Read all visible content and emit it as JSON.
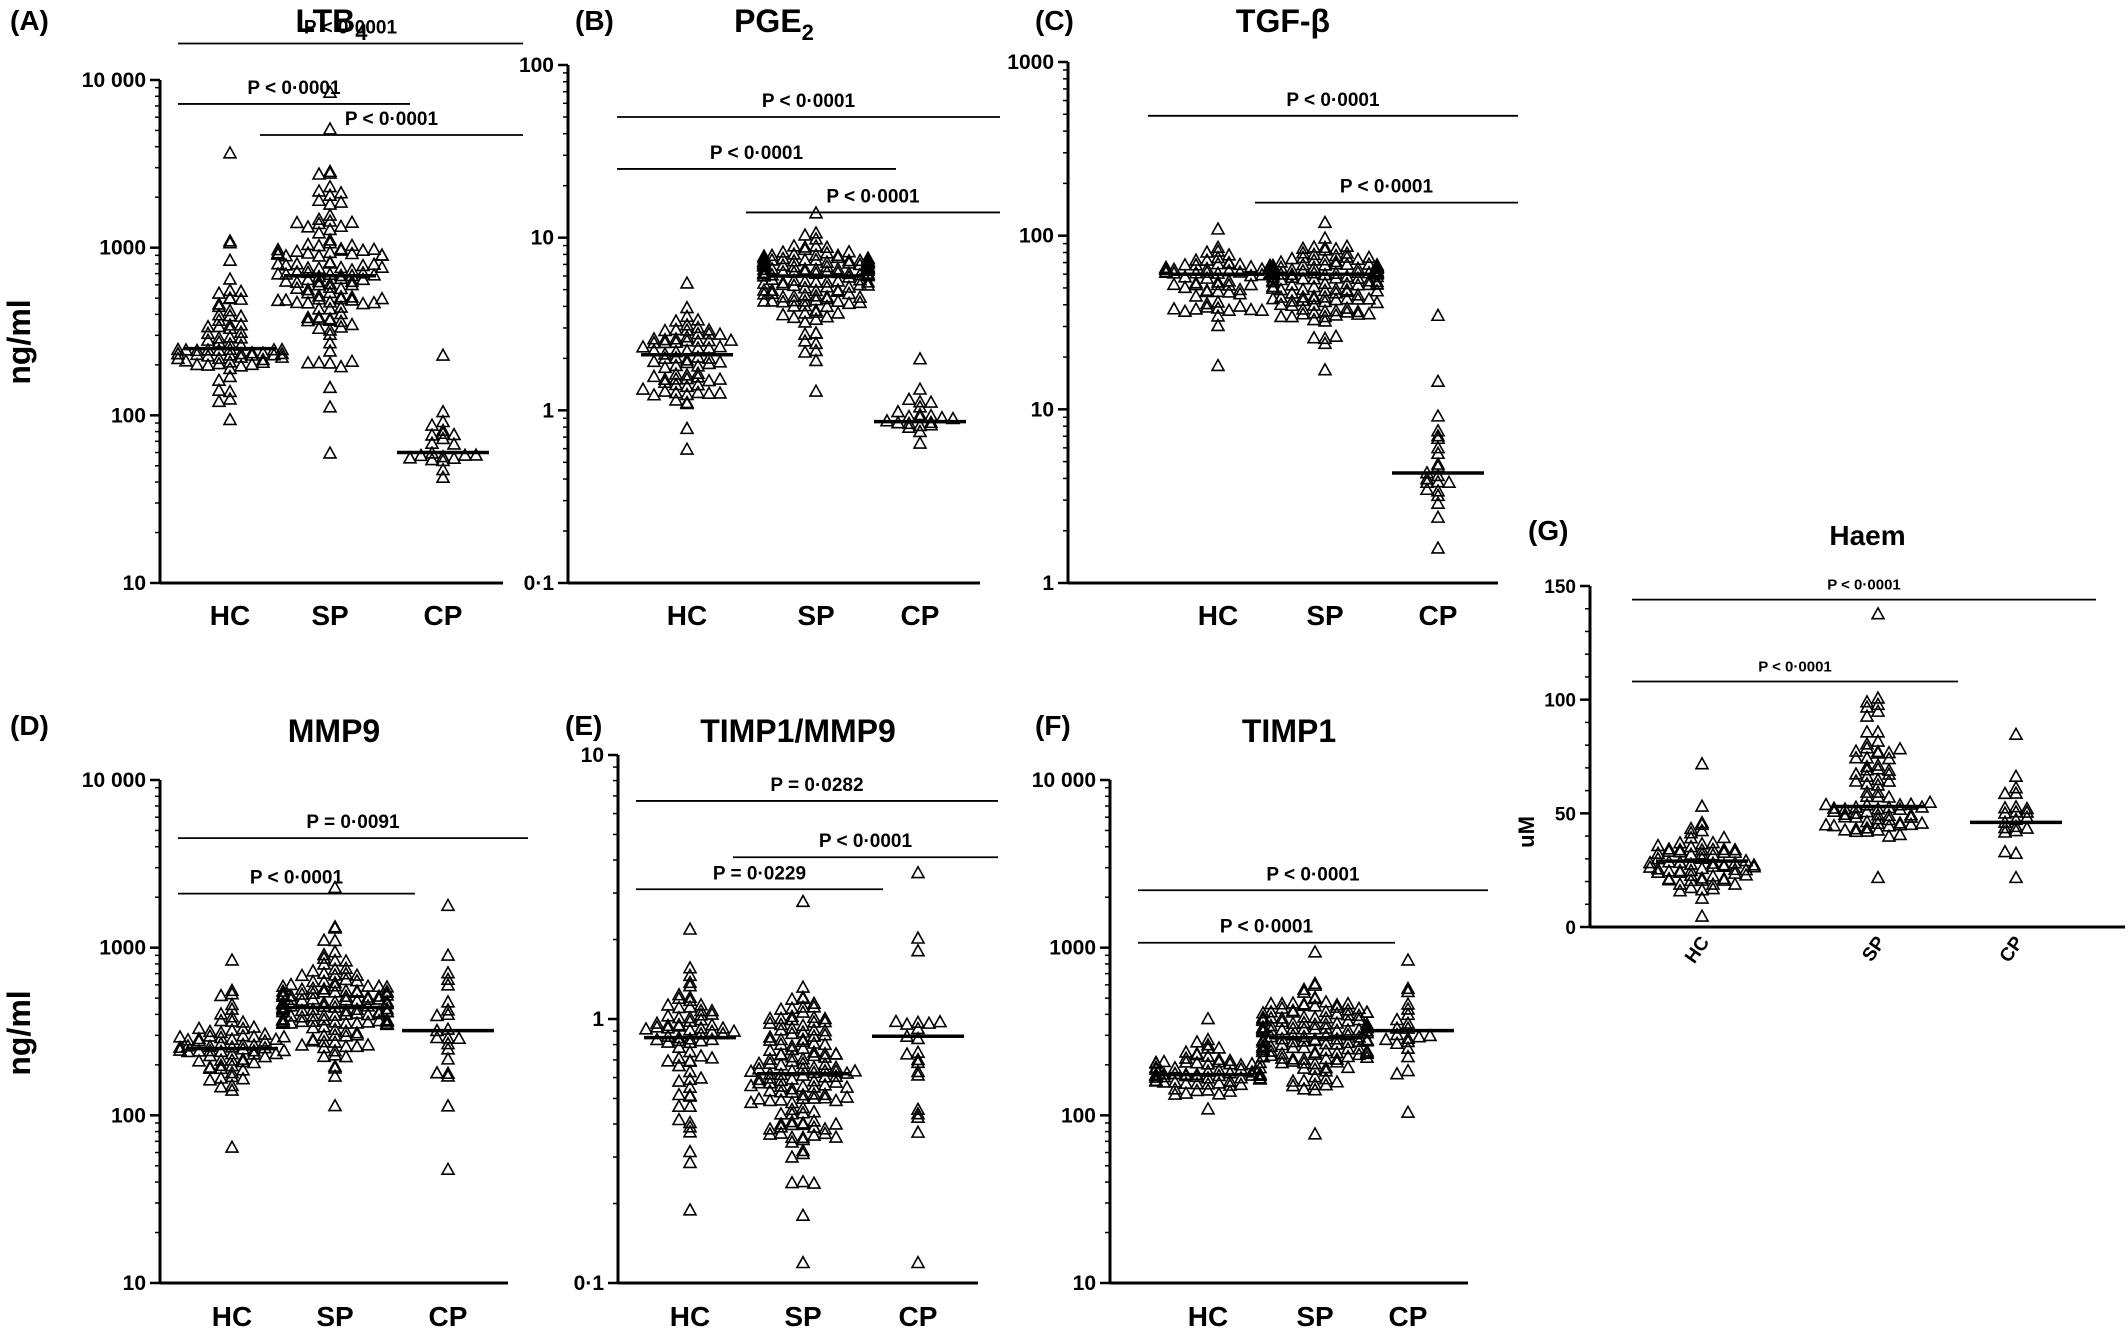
{
  "figure": {
    "y_label_top": "ng/ml",
    "y_label_bottom": "ng/ml",
    "y_label_g": "uM"
  },
  "chart_data": [
    {
      "panel": "(A)",
      "title": "LTB",
      "title_sub": "4",
      "type": "scatter",
      "scale": "log",
      "ylim": [
        10,
        10000
      ],
      "yticks": [
        10,
        100,
        1000,
        10000
      ],
      "yticklabels": [
        "10",
        "100",
        "1000",
        "10 000"
      ],
      "categories": [
        "HC",
        "SP",
        "CP"
      ],
      "groups": [
        {
          "name": "HC",
          "median": 250,
          "n": 72,
          "min": 95,
          "max": 3700,
          "seed": 11
        },
        {
          "name": "SP",
          "median": 680,
          "n": 120,
          "min": 60,
          "max": 8500,
          "seed": 12
        },
        {
          "name": "CP",
          "median": 60,
          "n": 22,
          "min": 43,
          "max": 230,
          "seed": 13
        }
      ],
      "comparisons": [
        {
          "from": "HC",
          "to": "SP",
          "label": "P < 0·0001",
          "y": 7200
        },
        {
          "from": "SP",
          "to": "CP",
          "label": "P < 0·0001",
          "y": 4700
        },
        {
          "from": "HC",
          "to": "CP",
          "label": "P < 0·0001",
          "y": 16500
        }
      ]
    },
    {
      "panel": "(B)",
      "title": "PGE",
      "title_sub": "2",
      "type": "scatter",
      "scale": "log",
      "ylim": [
        0.1,
        100
      ],
      "yticks": [
        0.1,
        1,
        10,
        100
      ],
      "yticklabels": [
        "0·1",
        "1",
        "10",
        "100"
      ],
      "categories": [
        "HC",
        "SP",
        "CP"
      ],
      "groups": [
        {
          "name": "HC",
          "median": 2.1,
          "n": 72,
          "min": 0.6,
          "max": 5.5,
          "seed": 21
        },
        {
          "name": "SP",
          "median": 6.0,
          "n": 140,
          "min": 1.3,
          "max": 14,
          "seed": 22
        },
        {
          "name": "CP",
          "median": 0.86,
          "n": 22,
          "min": 0.65,
          "max": 2.0,
          "seed": 23
        }
      ],
      "comparisons": [
        {
          "from": "HC",
          "to": "SP",
          "label": "P < 0·0001",
          "y": 25
        },
        {
          "from": "SP",
          "to": "CP",
          "label": "P < 0·0001",
          "y": 14
        },
        {
          "from": "HC",
          "to": "CP",
          "label": "P < 0·0001",
          "y": 50
        }
      ]
    },
    {
      "panel": "(C)",
      "title": "TGF-β",
      "title_sub": "",
      "type": "scatter",
      "scale": "log",
      "ylim": [
        1,
        1000
      ],
      "yticks": [
        1,
        10,
        100,
        1000
      ],
      "yticklabels": [
        "1",
        "10",
        "100",
        "1000"
      ],
      "categories": [
        "HC",
        "SP",
        "CP"
      ],
      "groups": [
        {
          "name": "HC",
          "median": 60,
          "n": 72,
          "min": 18,
          "max": 110,
          "seed": 31
        },
        {
          "name": "SP",
          "median": 60,
          "n": 140,
          "min": 17,
          "max": 120,
          "seed": 32
        },
        {
          "name": "CP",
          "median": 4.3,
          "n": 22,
          "min": 1.6,
          "max": 35,
          "seed": 33
        }
      ],
      "comparisons": [
        {
          "from": "SP",
          "to": "CP",
          "label": "P < 0·0001",
          "y": 155
        },
        {
          "from": "HC",
          "to": "CP",
          "label": "P < 0·0001",
          "y": 490
        }
      ]
    },
    {
      "panel": "(D)",
      "title": "MMP9",
      "title_sub": "",
      "type": "scatter",
      "scale": "log",
      "ylim": [
        10,
        10000
      ],
      "yticks": [
        10,
        100,
        1000,
        10000
      ],
      "yticklabels": [
        "10",
        "100",
        "1000",
        "10 000"
      ],
      "categories": [
        "HC",
        "SP",
        "CP"
      ],
      "groups": [
        {
          "name": "HC",
          "median": 250,
          "n": 72,
          "min": 65,
          "max": 850,
          "seed": 41
        },
        {
          "name": "SP",
          "median": 440,
          "n": 140,
          "min": 115,
          "max": 2300,
          "seed": 42
        },
        {
          "name": "CP",
          "median": 320,
          "n": 22,
          "min": 48,
          "max": 1800,
          "seed": 43
        }
      ],
      "comparisons": [
        {
          "from": "HC",
          "to": "SP",
          "label": "P < 0·0001",
          "y": 2100
        },
        {
          "from": "HC",
          "to": "CP",
          "label": "P = 0·0091",
          "y": 4500
        }
      ]
    },
    {
      "panel": "(E)",
      "title": "TIMP1/MMP9",
      "title_sub": "",
      "type": "scatter",
      "scale": "log",
      "ylim": [
        0.1,
        10
      ],
      "yticks": [
        0.1,
        1,
        10
      ],
      "yticklabels": [
        "0·1",
        "1",
        "10"
      ],
      "categories": [
        "HC",
        "SP",
        "CP"
      ],
      "groups": [
        {
          "name": "HC",
          "median": 0.85,
          "n": 72,
          "min": 0.19,
          "max": 2.2,
          "seed": 51
        },
        {
          "name": "SP",
          "median": 0.62,
          "n": 140,
          "min": 0.12,
          "max": 2.8,
          "seed": 52
        },
        {
          "name": "CP",
          "median": 0.86,
          "n": 22,
          "min": 0.12,
          "max": 3.6,
          "seed": 53
        }
      ],
      "comparisons": [
        {
          "from": "HC",
          "to": "SP",
          "label": "P = 0·0229",
          "y": 3.1
        },
        {
          "from": "SP",
          "to": "CP",
          "label": "P < 0·0001",
          "y": 4.1
        },
        {
          "from": "HC",
          "to": "CP",
          "label": "P = 0·0282",
          "y": 6.7
        }
      ]
    },
    {
      "panel": "(F)",
      "title": "TIMP1",
      "title_sub": "",
      "type": "scatter",
      "scale": "log",
      "ylim": [
        10,
        10000
      ],
      "yticks": [
        10,
        100,
        1000,
        10000
      ],
      "yticklabels": [
        "10",
        "100",
        "1000",
        "10 000"
      ],
      "categories": [
        "HC",
        "SP",
        "CP"
      ],
      "groups": [
        {
          "name": "HC",
          "median": 175,
          "n": 72,
          "min": 110,
          "max": 380,
          "seed": 61
        },
        {
          "name": "SP",
          "median": 290,
          "n": 140,
          "min": 78,
          "max": 950,
          "seed": 62
        },
        {
          "name": "CP",
          "median": 320,
          "n": 22,
          "min": 105,
          "max": 850,
          "seed": 63
        }
      ],
      "comparisons": [
        {
          "from": "HC",
          "to": "SP",
          "label": "P < 0·0001",
          "y": 1070
        },
        {
          "from": "HC",
          "to": "CP",
          "label": "P < 0·0001",
          "y": 2200
        }
      ]
    },
    {
      "panel": "(G)",
      "title": "Haem",
      "title_sub": "",
      "type": "scatter",
      "scale": "linear",
      "ylim": [
        0,
        150
      ],
      "yticks": [
        0,
        50,
        100,
        150
      ],
      "yticklabels": [
        "0",
        "50",
        "100",
        "150"
      ],
      "categories": [
        "HC",
        "SP",
        "CP"
      ],
      "groups": [
        {
          "name": "HC",
          "median": 29,
          "n": 72,
          "min": 5,
          "max": 72,
          "seed": 71
        },
        {
          "name": "SP",
          "median": 53,
          "n": 80,
          "min": 22,
          "max": 138,
          "seed": 72
        },
        {
          "name": "CP",
          "median": 46,
          "n": 22,
          "min": 22,
          "max": 85,
          "seed": 73
        }
      ],
      "comparisons": [
        {
          "from": "HC",
          "to": "SP",
          "label": "P < 0·0001",
          "y": 108
        },
        {
          "from": "HC",
          "to": "CP",
          "label": "P < 0·0001",
          "y": 144
        }
      ]
    }
  ]
}
